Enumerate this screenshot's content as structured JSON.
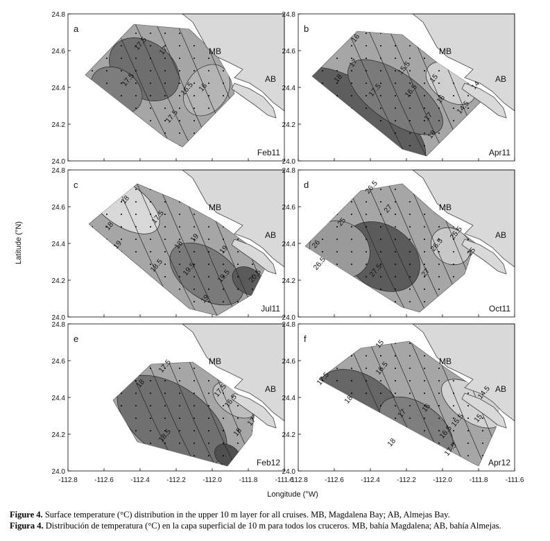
{
  "axes": {
    "y_label": "Latitude (°N)",
    "x_label": "Longitude (°W)",
    "yticks": [
      "24.0",
      "24.2",
      "24.4",
      "24.6",
      "24.8"
    ],
    "xticks": [
      "-112.8",
      "-112.6",
      "-112.4",
      "-112.2",
      "-112.0",
      "-111.8",
      "-111.6"
    ]
  },
  "panels": [
    {
      "letter": "a",
      "cruise": "Feb11",
      "mb": "MB",
      "ab": "AB",
      "contours": [
        "17.5",
        "17",
        "17.5",
        "16.5",
        "16",
        "17.5"
      ]
    },
    {
      "letter": "b",
      "cruise": "Apr11",
      "mb": "MB",
      "ab": "AB",
      "contours": [
        "16",
        "17",
        "15.5",
        "15",
        "14",
        "18",
        "17.5",
        "16.5",
        "16",
        "14.5",
        "17",
        "18"
      ]
    },
    {
      "letter": "c",
      "cruise": "Jul11",
      "mb": "MB",
      "ab": "AB",
      "contours": [
        "18",
        "17.5",
        "18",
        "19",
        "18",
        "19",
        "18.5",
        "19.5",
        "19",
        "19.5",
        "20.5",
        "19"
      ]
    },
    {
      "letter": "d",
      "cruise": "Oct11",
      "mb": "MB",
      "ab": "AB",
      "contours": [
        "26.5",
        "25",
        "27",
        "26",
        "25.5",
        "25",
        "26.5",
        "27.5",
        "27",
        "26.5"
      ]
    },
    {
      "letter": "e",
      "cruise": "Feb12",
      "mb": "MB",
      "ab": "AB",
      "contours": [
        "17.5",
        "18",
        "17.5",
        "16.5",
        "17",
        "18.5",
        "18"
      ]
    },
    {
      "letter": "f",
      "cruise": "Apr12",
      "mb": "MB",
      "ab": "AB",
      "contours": [
        "15",
        "16.5",
        "17.5",
        "18",
        "17",
        "16",
        "14.5",
        "15.5",
        "15",
        "16.5",
        "18",
        "17.5"
      ]
    }
  ],
  "caption": [
    {
      "label": "Figure 4.",
      "text": "Surface temperature (°C) distribution in the upper 10 m layer for all cruises. MB, Magdalena Bay; AB, Almejas Bay."
    },
    {
      "label": "Figura 4.",
      "text": "Distribución de temperatura (°C) en la capa superficial de 10 m para todos los cruceros. MB, bahía Magdalena; AB, bahía Almejas."
    }
  ]
}
